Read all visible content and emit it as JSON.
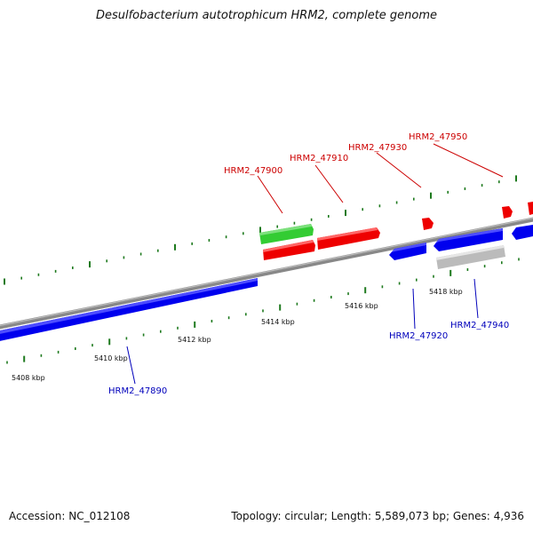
{
  "title": "Desulfobacterium autotrophicum HRM2, complete genome",
  "footer": {
    "accession": "Accession: NC_012108",
    "stats": "Topology: circular; Length: 5,589,073 bp; Genes: 4,936"
  },
  "colors": {
    "backbone": "#808080",
    "tick": "#1e7a1e",
    "forward_label": "#cc0000",
    "reverse_label": "#0000bb",
    "gene_red": "#ee0000",
    "gene_blue": "#0000ee",
    "gene_green": "#33cc33",
    "gene_gray": "#bbbbbb"
  },
  "axis": {
    "labels": [
      "5408 kbp",
      "5410 kbp",
      "5412 kbp",
      "5414 kbp",
      "5416 kbp",
      "5418 kbp"
    ]
  },
  "genes": [
    {
      "id": "HRM2_47890",
      "strand": "reverse",
      "color": "gene_blue",
      "labeled": true
    },
    {
      "id": "HRM2_47900",
      "strand": "forward",
      "color": "gene_red",
      "labeled": true
    },
    {
      "id": "HRM2_47900_rna",
      "strand": "forward",
      "color": "gene_green",
      "labeled": false
    },
    {
      "id": "HRM2_47910",
      "strand": "forward",
      "color": "gene_red",
      "labeled": true
    },
    {
      "id": "HRM2_47920",
      "strand": "reverse",
      "color": "gene_blue",
      "labeled": true
    },
    {
      "id": "HRM2_47930",
      "strand": "forward",
      "color": "gene_red",
      "labeled": true
    },
    {
      "id": "HRM2_47940",
      "strand": "reverse",
      "color": "gene_gray",
      "labeled": true
    },
    {
      "id": "HRM2_47940b",
      "strand": "reverse",
      "color": "gene_blue",
      "labeled": false
    },
    {
      "id": "HRM2_47950",
      "strand": "forward",
      "color": "gene_red",
      "labeled": true
    }
  ]
}
